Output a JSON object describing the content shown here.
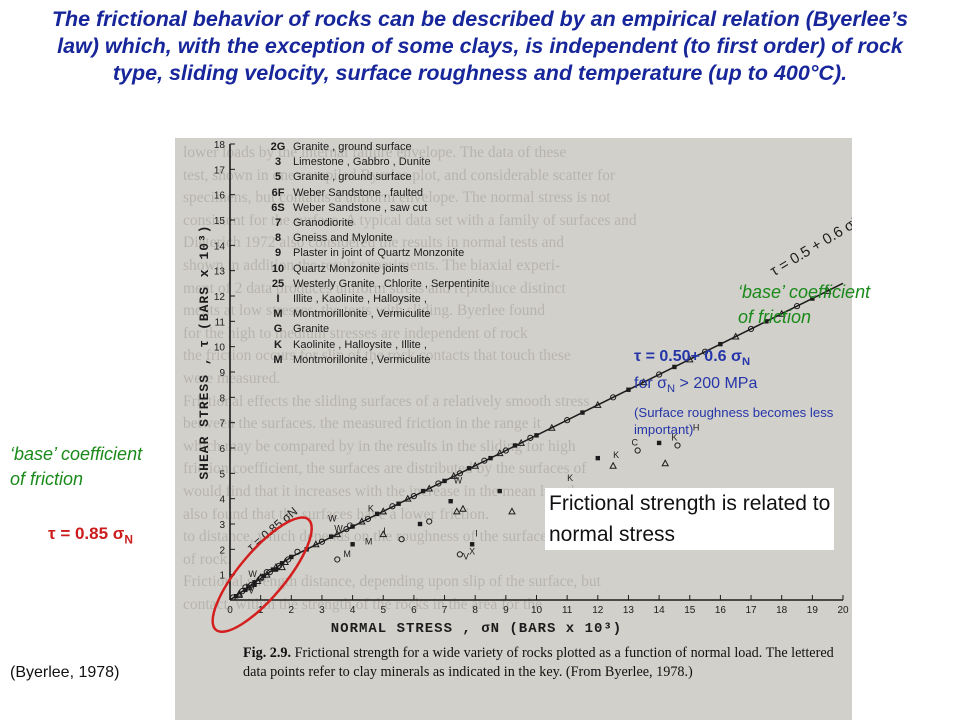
{
  "title": "The frictional behavior of rocks can be described by an empirical relation (Byerlee’s law) which, with the exception of some clays, is independent (to first order) of rock type, sliding velocity, surface roughness and temperature (up to 400°C).",
  "annotations": {
    "base_coefficient_right": [
      "‘base’ coefficient",
      "of friction"
    ],
    "base_coefficient_left": [
      "‘base’ coefficient",
      "of friction"
    ],
    "eq_high": {
      "tau": "τ",
      "eq": " = 0.50+ 0.6 ",
      "sigma": "σ",
      "sub": "N"
    },
    "eq_high_cond": {
      "pre": "for ",
      "sigma": "σ",
      "sub": "N",
      "post": " > 200 MPa"
    },
    "eq_high_note": [
      "(Surface roughness becomes less",
      "important)"
    ],
    "eq_low": {
      "tau": "τ",
      "eq": " = 0.85 ",
      "sigma": "σ",
      "sub": "N"
    },
    "statement": [
      "Frictional strength is related to",
      "normal stress"
    ],
    "reference": "(Byerlee, 1978)"
  },
  "colors": {
    "title": "#17269a",
    "green": "#1a8a1a",
    "blue": "#2535a8",
    "red": "#cc1c1c",
    "ellipse": "#d41f1f"
  },
  "figure": {
    "caption_label": "Fig. 2.9.",
    "caption_text": "Frictional strength for a wide variety of rocks plotted as a function of normal load. The lettered data points refer to clay minerals as indicated in the key. (From Byerlee, 1978.)",
    "legend": [
      {
        "code": "2G",
        "name": "Granite , ground surface"
      },
      {
        "code": "3",
        "name": "Limestone , Gabbro , Dunite"
      },
      {
        "code": "5",
        "name": "Granite , ground surface"
      },
      {
        "code": "6F",
        "name": "Weber Sandstone , faulted"
      },
      {
        "code": "6S",
        "name": "Weber Sandstone , saw cut"
      },
      {
        "code": "7",
        "name": "Granodiorite"
      },
      {
        "code": "8",
        "name": "Gneiss and Mylonite"
      },
      {
        "code": "9",
        "name": "Plaster in joint of Quartz Monzonite"
      },
      {
        "code": "10",
        "name": "Quartz Monzonite joints"
      },
      {
        "code": "25",
        "name": "Westerly Granite , Chlorite , Serpentinite"
      },
      {
        "code": "I",
        "name": "Illite , Kaolinite , Halloysite ,"
      },
      {
        "code": "M",
        "name": "Montmorillonite , Vermiculite"
      },
      {
        "code": "G",
        "name": "Granite"
      },
      {
        "code": "K",
        "name": "Kaolinite , Halloysite , Illite ,"
      },
      {
        "code": "M",
        "name": "Montmorillonite , Vermiculite"
      }
    ],
    "line_labels": {
      "high": "τ = 0.5 + 0.6 σN",
      "low": "τ = 0.85 σN"
    }
  },
  "chart_data": {
    "type": "scatter",
    "xlabel": "NORMAL STRESS , σN (BARS x 10³)",
    "ylabel": "SHEAR STRESS , τ (BARS x 10³)",
    "xlim": [
      0,
      20
    ],
    "ylim": [
      0,
      18
    ],
    "x_ticks": [
      "0",
      "1",
      "2",
      "3",
      "4",
      "5",
      "6",
      "7",
      "8",
      "9",
      "10",
      "11",
      "12",
      "13",
      "14",
      "15",
      "16",
      "17",
      "18",
      "19",
      "20"
    ],
    "y_ticks": [
      "1",
      "2",
      "3",
      "4",
      "5",
      "6",
      "7",
      "8",
      "9",
      "10",
      "11",
      "12",
      "13",
      "14",
      "15",
      "16",
      "17",
      "18"
    ],
    "fit_lines": [
      {
        "label": "τ = 0.5 + 0.6 σN",
        "x": [
          2,
          20
        ],
        "y": [
          1.7,
          12.5
        ]
      },
      {
        "label": "τ = 0.85 σN",
        "x": [
          0,
          2
        ],
        "y": [
          0,
          1.7
        ]
      }
    ],
    "points": [
      [
        0.1,
        0.1
      ],
      [
        0.2,
        0.15
      ],
      [
        0.3,
        0.25
      ],
      [
        0.4,
        0.35
      ],
      [
        0.5,
        0.4
      ],
      [
        0.6,
        0.5
      ],
      [
        0.7,
        0.6
      ],
      [
        0.8,
        0.7
      ],
      [
        0.9,
        0.75
      ],
      [
        1.0,
        0.85
      ],
      [
        1.1,
        0.95
      ],
      [
        1.2,
        1.0
      ],
      [
        1.3,
        1.1
      ],
      [
        1.4,
        1.2
      ],
      [
        1.5,
        1.3
      ],
      [
        1.6,
        1.35
      ],
      [
        1.7,
        1.45
      ],
      [
        1.8,
        1.5
      ],
      [
        1.9,
        1.6
      ],
      [
        2.0,
        1.7
      ],
      [
        0.3,
        0.2
      ],
      [
        0.5,
        0.5
      ],
      [
        0.8,
        0.6
      ],
      [
        1.0,
        0.9
      ],
      [
        1.2,
        1.1
      ],
      [
        1.5,
        1.2
      ],
      [
        1.7,
        1.3
      ],
      [
        2.2,
        1.9
      ],
      [
        2.5,
        2.0
      ],
      [
        2.8,
        2.2
      ],
      [
        3.0,
        2.3
      ],
      [
        3.3,
        2.5
      ],
      [
        3.5,
        2.6
      ],
      [
        3.8,
        2.8
      ],
      [
        4.0,
        2.9
      ],
      [
        4.3,
        3.1
      ],
      [
        4.5,
        3.2
      ],
      [
        4.8,
        3.4
      ],
      [
        5.0,
        3.5
      ],
      [
        5.3,
        3.7
      ],
      [
        5.5,
        3.8
      ],
      [
        5.8,
        4.0
      ],
      [
        6.0,
        4.1
      ],
      [
        6.3,
        4.3
      ],
      [
        6.5,
        4.4
      ],
      [
        6.8,
        4.6
      ],
      [
        7.0,
        4.7
      ],
      [
        7.3,
        4.9
      ],
      [
        7.5,
        5.0
      ],
      [
        7.8,
        5.2
      ],
      [
        8.0,
        5.3
      ],
      [
        8.3,
        5.5
      ],
      [
        8.5,
        5.6
      ],
      [
        8.8,
        5.8
      ],
      [
        9.0,
        5.9
      ],
      [
        9.3,
        6.1
      ],
      [
        9.5,
        6.2
      ],
      [
        9.8,
        6.4
      ],
      [
        10.0,
        6.5
      ],
      [
        10.5,
        6.8
      ],
      [
        11.0,
        7.1
      ],
      [
        11.5,
        7.4
      ],
      [
        12.0,
        7.7
      ],
      [
        12.5,
        8.0
      ],
      [
        13.0,
        8.3
      ],
      [
        13.5,
        8.6
      ],
      [
        14.0,
        8.9
      ],
      [
        14.5,
        9.2
      ],
      [
        15.0,
        9.5
      ],
      [
        15.5,
        9.8
      ],
      [
        16.0,
        10.1
      ],
      [
        16.5,
        10.4
      ],
      [
        17.0,
        10.7
      ],
      [
        17.5,
        11.0
      ],
      [
        18.0,
        11.3
      ],
      [
        18.5,
        11.6
      ],
      [
        19.0,
        11.9
      ],
      [
        19.5,
        12.2
      ],
      [
        3.5,
        1.6
      ],
      [
        4.0,
        2.2
      ],
      [
        5.0,
        2.6
      ],
      [
        5.6,
        2.4
      ],
      [
        6.2,
        3.0
      ],
      [
        7.4,
        3.5
      ],
      [
        7.5,
        1.8
      ],
      [
        7.9,
        2.2
      ],
      [
        9.2,
        3.5
      ],
      [
        11.0,
        4.0
      ],
      [
        12.0,
        5.6
      ],
      [
        12.5,
        5.3
      ],
      [
        13.3,
        5.9
      ],
      [
        14.0,
        6.2
      ],
      [
        14.2,
        5.4
      ],
      [
        14.6,
        6.1
      ],
      [
        7.2,
        3.9
      ],
      [
        7.6,
        3.6
      ],
      [
        6.5,
        3.1
      ],
      [
        8.8,
        4.3
      ]
    ],
    "point_labels": [
      {
        "text": "W",
        "x": 3.2,
        "y": 3.1
      },
      {
        "text": "W",
        "x": 3.4,
        "y": 2.7
      },
      {
        "text": "W",
        "x": 7.3,
        "y": 4.6
      },
      {
        "text": "K",
        "x": 4.5,
        "y": 3.5
      },
      {
        "text": "K",
        "x": 11.0,
        "y": 4.7
      },
      {
        "text": "K",
        "x": 12.5,
        "y": 5.6
      },
      {
        "text": "K",
        "x": 14.4,
        "y": 6.3
      },
      {
        "text": "H",
        "x": 15.1,
        "y": 6.7
      },
      {
        "text": "C",
        "x": 13.1,
        "y": 6.1
      },
      {
        "text": "C",
        "x": 3.8,
        "y": 2.8
      },
      {
        "text": "M",
        "x": 4.4,
        "y": 2.2
      },
      {
        "text": "M",
        "x": 3.7,
        "y": 1.7
      },
      {
        "text": "I",
        "x": 5.0,
        "y": 2.6
      },
      {
        "text": "I",
        "x": 8.0,
        "y": 2.5
      },
      {
        "text": "V",
        "x": 7.6,
        "y": 1.6
      },
      {
        "text": "X",
        "x": 7.8,
        "y": 1.8
      },
      {
        "text": "W",
        "x": 0.6,
        "y": 0.9
      },
      {
        "text": "M",
        "x": 0.5,
        "y": 0.4
      },
      {
        "text": "V",
        "x": 0.6,
        "y": 0.25
      }
    ],
    "grid": false
  },
  "ghost_text": [
    "lower loads by the internal failure envelope. The data of these",
    "test, shown in one compiled Byerlee plot, and considerable scatter for",
    "specimens, but contains a uniform envelope. The normal stress is not",
    "consistent for the surface. A typical data set with a family of surfaces and",
    "Dieterich 1972 also considered the results in normal tests and",
    "shown in addition the result experiments. The biaxial experi-",
    "ment of 2 data produces uniform stress and reproduce distinct",
    "ments at low stresses, the tests with sliding. Byerlee found",
    "for the high to medium stresses are independent of rock",
    "the friction occurs for slip of the rock contacts that touch these",
    "were measured.",
    "Frictional effects the sliding surfaces of a relatively smooth stress",
    "between the surfaces. the measured friction in the range it",
    "which may be compared by in the results in the sliding for high",
    "friction coefficient, the surfaces are distributed by the surfaces of",
    "would find that it increases with the increase in the mean length",
    "also found that the surfaces have a lower friction.",
    "to distance, which depends on the roughness of the surfaces.",
    "of rock.",
    "Frictional strength distance, depending upon slip of the surface, but",
    "contact, within the strength of the rocks in the area for the"
  ]
}
